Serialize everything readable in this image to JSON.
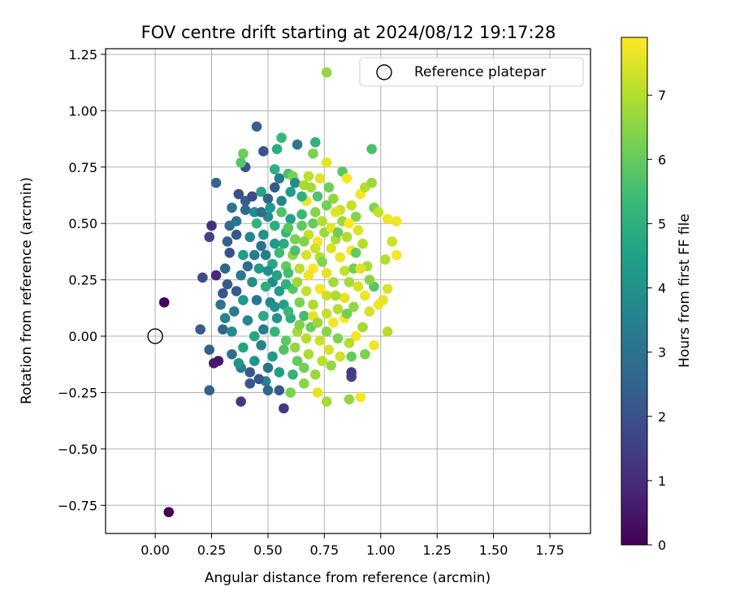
{
  "chart_data": {
    "type": "scatter",
    "title": "FOV centre drift starting at 2024/08/12 19:17:28",
    "xlabel": "Angular distance from reference (arcmin)",
    "ylabel": "Rotation from reference (arcmin)",
    "xlim": [
      -0.22,
      1.93
    ],
    "ylim": [
      -0.875,
      1.275
    ],
    "xticks": [
      0.0,
      0.25,
      0.5,
      0.75,
      1.0,
      1.25,
      1.5,
      1.75
    ],
    "xtick_labels": [
      "0.00",
      "0.25",
      "0.50",
      "0.75",
      "1.00",
      "1.25",
      "1.50",
      "1.75"
    ],
    "yticks": [
      -0.75,
      -0.5,
      -0.25,
      0.0,
      0.25,
      0.5,
      0.75,
      1.0,
      1.25
    ],
    "ytick_labels": [
      "−0.75",
      "−0.50",
      "−0.25",
      "0.00",
      "0.25",
      "0.50",
      "0.75",
      "1.00",
      "1.25"
    ],
    "grid": true,
    "legend": {
      "position": "top-right",
      "entries": [
        {
          "label": "Reference platepar",
          "marker": "open-circle"
        }
      ]
    },
    "reference_point": {
      "x": 0.0,
      "y": 0.0
    },
    "colorbar": {
      "label": "Hours from first FF file",
      "range": [
        0,
        7.9
      ],
      "ticks": [
        0,
        1,
        2,
        3,
        4,
        5,
        6,
        7
      ],
      "colormap": "viridis",
      "colors": [
        "#440154",
        "#482878",
        "#3e4989",
        "#31688e",
        "#26828e",
        "#1f9e89",
        "#35b779",
        "#6ece58",
        "#b5de2b",
        "#fde725"
      ]
    },
    "points": [
      [
        0.04,
        0.15,
        0.1
      ],
      [
        0.06,
        -0.78,
        0.1
      ],
      [
        0.26,
        -0.12,
        0.6
      ],
      [
        0.28,
        -0.11,
        0.5
      ],
      [
        0.27,
        0.27,
        0.9
      ],
      [
        0.25,
        0.49,
        1.1
      ],
      [
        0.24,
        0.44,
        1.6
      ],
      [
        0.21,
        0.26,
        1.8
      ],
      [
        0.2,
        0.03,
        2.3
      ],
      [
        0.24,
        -0.06,
        2.4
      ],
      [
        0.24,
        -0.24,
        2.5
      ],
      [
        0.27,
        0.68,
        2.6
      ],
      [
        0.38,
        -0.29,
        1.3
      ],
      [
        0.45,
        0.93,
        2.4
      ],
      [
        0.4,
        0.75,
        2.0
      ],
      [
        0.48,
        0.82,
        2.1
      ],
      [
        0.57,
        -0.32,
        1.3
      ],
      [
        0.87,
        -0.18,
        1.6
      ],
      [
        0.87,
        -0.16,
        1.5
      ],
      [
        0.37,
        0.63,
        1.9
      ],
      [
        0.34,
        0.57,
        3.0
      ],
      [
        0.38,
        0.77,
        5.8
      ],
      [
        0.39,
        0.81,
        6.1
      ],
      [
        0.54,
        0.83,
        4.9
      ],
      [
        0.56,
        0.88,
        5.3
      ],
      [
        0.63,
        0.85,
        3.2
      ],
      [
        0.7,
        0.81,
        6.3
      ],
      [
        0.71,
        0.86,
        5.1
      ],
      [
        0.76,
        1.17,
        6.6
      ],
      [
        0.96,
        0.83,
        5.6
      ],
      [
        0.76,
        0.77,
        7.6
      ],
      [
        0.83,
        0.73,
        5.8
      ],
      [
        0.85,
        0.7,
        7.9
      ],
      [
        0.91,
        0.63,
        7.8
      ],
      [
        0.93,
        0.66,
        7.0
      ],
      [
        0.96,
        0.68,
        6.7
      ],
      [
        0.97,
        0.57,
        6.4
      ],
      [
        0.99,
        0.55,
        7.2
      ],
      [
        1.03,
        0.52,
        7.7
      ],
      [
        1.07,
        0.51,
        7.7
      ],
      [
        1.05,
        0.42,
        7.3
      ],
      [
        1.07,
        0.36,
        7.8
      ],
      [
        1.02,
        0.34,
        7.0
      ],
      [
        1.03,
        0.21,
        7.5
      ],
      [
        1.01,
        0.16,
        7.6
      ],
      [
        0.99,
        0.14,
        7.7
      ],
      [
        0.97,
        0.22,
        5.8
      ],
      [
        1.03,
        0.02,
        7.0
      ],
      [
        0.97,
        -0.04,
        7.7
      ],
      [
        0.93,
        -0.08,
        6.3
      ],
      [
        0.87,
        -0.09,
        6.0
      ],
      [
        0.86,
        -0.28,
        6.6
      ],
      [
        0.91,
        -0.27,
        7.8
      ],
      [
        0.76,
        -0.29,
        6.8
      ],
      [
        0.72,
        -0.25,
        7.6
      ],
      [
        0.66,
        -0.21,
        6.5
      ],
      [
        0.6,
        -0.25,
        6.3
      ],
      [
        0.55,
        -0.24,
        2.3
      ],
      [
        0.49,
        -0.2,
        3.5
      ],
      [
        0.5,
        -0.24,
        2.6
      ],
      [
        0.46,
        -0.19,
        2.1
      ],
      [
        0.42,
        -0.21,
        2.1
      ],
      [
        0.42,
        -0.16,
        2.2
      ],
      [
        0.38,
        -0.14,
        3.4
      ],
      [
        0.37,
        -0.12,
        4.0
      ],
      [
        0.34,
        -0.08,
        2.9
      ],
      [
        0.3,
        0.03,
        2.6
      ],
      [
        0.31,
        0.08,
        3.5
      ],
      [
        0.35,
        0.11,
        3.2
      ],
      [
        0.29,
        0.14,
        3.0
      ],
      [
        0.3,
        0.19,
        2.1
      ],
      [
        0.32,
        0.23,
        2.3
      ],
      [
        0.31,
        0.3,
        2.6
      ],
      [
        0.33,
        0.37,
        1.9
      ],
      [
        0.32,
        0.42,
        2.4
      ],
      [
        0.33,
        0.49,
        2.7
      ],
      [
        0.36,
        0.45,
        2.2
      ],
      [
        0.36,
        0.51,
        3.1
      ],
      [
        0.4,
        0.56,
        2.7
      ],
      [
        0.4,
        0.6,
        2.4
      ],
      [
        0.43,
        0.62,
        1.8
      ],
      [
        0.44,
        0.55,
        3.9
      ],
      [
        0.47,
        0.64,
        4.6
      ],
      [
        0.5,
        0.61,
        2.5
      ],
      [
        0.53,
        0.66,
        2.3
      ],
      [
        0.55,
        0.7,
        3.3
      ],
      [
        0.53,
        0.74,
        5.0
      ],
      [
        0.59,
        0.72,
        5.6
      ],
      [
        0.61,
        0.71,
        6.3
      ],
      [
        0.62,
        0.68,
        3.8
      ],
      [
        0.66,
        0.67,
        6.9
      ],
      [
        0.67,
        0.6,
        7.7
      ],
      [
        0.68,
        0.71,
        7.1
      ],
      [
        0.73,
        0.7,
        7.5
      ],
      [
        0.77,
        0.66,
        6.1
      ],
      [
        0.79,
        0.61,
        6.6
      ],
      [
        0.82,
        0.56,
        7.3
      ],
      [
        0.87,
        0.58,
        7.2
      ],
      [
        0.89,
        0.53,
        6.4
      ],
      [
        0.9,
        0.47,
        7.5
      ],
      [
        0.92,
        0.41,
        7.0
      ],
      [
        0.94,
        0.31,
        6.9
      ],
      [
        0.95,
        0.25,
        6.5
      ],
      [
        0.93,
        0.18,
        7.7
      ],
      [
        0.95,
        0.11,
        7.4
      ],
      [
        0.92,
        0.04,
        6.8
      ],
      [
        0.89,
        0.0,
        7.8
      ],
      [
        0.86,
        -0.03,
        7.0
      ],
      [
        0.82,
        -0.09,
        7.3
      ],
      [
        0.78,
        -0.13,
        6.6
      ],
      [
        0.74,
        -0.11,
        7.1
      ],
      [
        0.68,
        -0.08,
        6.9
      ],
      [
        0.63,
        -0.11,
        6.0
      ],
      [
        0.57,
        -0.06,
        5.7
      ],
      [
        0.52,
        -0.09,
        4.3
      ],
      [
        0.47,
        -0.04,
        3.5
      ],
      [
        0.44,
        0.0,
        4.7
      ],
      [
        0.41,
        0.07,
        3.7
      ],
      [
        0.39,
        0.16,
        4.2
      ],
      [
        0.38,
        0.27,
        3.2
      ],
      [
        0.39,
        0.36,
        4.4
      ],
      [
        0.42,
        0.44,
        3.6
      ],
      [
        0.45,
        0.5,
        5.1
      ],
      [
        0.48,
        0.45,
        4.0
      ],
      [
        0.5,
        0.53,
        3.8
      ],
      [
        0.53,
        0.49,
        4.9
      ],
      [
        0.56,
        0.55,
        5.7
      ],
      [
        0.58,
        0.46,
        5.2
      ],
      [
        0.6,
        0.52,
        4.6
      ],
      [
        0.62,
        0.43,
        6.3
      ],
      [
        0.65,
        0.49,
        5.9
      ],
      [
        0.68,
        0.45,
        7.2
      ],
      [
        0.7,
        0.5,
        6.0
      ],
      [
        0.72,
        0.42,
        7.8
      ],
      [
        0.75,
        0.46,
        6.7
      ],
      [
        0.78,
        0.39,
        7.5
      ],
      [
        0.8,
        0.43,
        6.9
      ],
      [
        0.82,
        0.35,
        7.7
      ],
      [
        0.84,
        0.29,
        7.2
      ],
      [
        0.86,
        0.24,
        6.8
      ],
      [
        0.84,
        0.17,
        7.6
      ],
      [
        0.81,
        0.12,
        7.0
      ],
      [
        0.79,
        0.06,
        7.8
      ],
      [
        0.76,
        0.02,
        6.5
      ],
      [
        0.73,
        -0.02,
        7.3
      ],
      [
        0.69,
        0.04,
        6.1
      ],
      [
        0.66,
        0.09,
        5.5
      ],
      [
        0.63,
        0.02,
        6.8
      ],
      [
        0.6,
        0.08,
        5.0
      ],
      [
        0.57,
        0.14,
        4.5
      ],
      [
        0.54,
        0.08,
        4.1
      ],
      [
        0.51,
        0.15,
        3.6
      ],
      [
        0.48,
        0.09,
        4.8
      ],
      [
        0.45,
        0.16,
        3.1
      ],
      [
        0.43,
        0.24,
        3.9
      ],
      [
        0.46,
        0.3,
        4.3
      ],
      [
        0.49,
        0.36,
        3.4
      ],
      [
        0.52,
        0.32,
        4.7
      ],
      [
        0.55,
        0.37,
        5.4
      ],
      [
        0.58,
        0.31,
        6.0
      ],
      [
        0.61,
        0.36,
        6.6
      ],
      [
        0.64,
        0.3,
        7.1
      ],
      [
        0.67,
        0.36,
        7.4
      ],
      [
        0.7,
        0.3,
        7.9
      ],
      [
        0.73,
        0.35,
        7.0
      ],
      [
        0.76,
        0.28,
        7.6
      ],
      [
        0.79,
        0.24,
        6.8
      ],
      [
        0.76,
        0.18,
        7.3
      ],
      [
        0.73,
        0.21,
        7.8
      ],
      [
        0.7,
        0.14,
        6.9
      ],
      [
        0.67,
        0.2,
        7.2
      ],
      [
        0.64,
        0.15,
        6.3
      ],
      [
        0.61,
        0.21,
        5.8
      ],
      [
        0.58,
        0.23,
        5.1
      ],
      [
        0.55,
        0.2,
        4.4
      ],
      [
        0.52,
        0.24,
        3.7
      ],
      [
        0.49,
        0.22,
        4.9
      ],
      [
        0.47,
        0.4,
        2.9
      ],
      [
        0.44,
        0.36,
        3.3
      ],
      [
        0.41,
        0.31,
        2.8
      ],
      [
        0.36,
        0.2,
        2.2
      ],
      [
        0.34,
        0.02,
        3.8
      ],
      [
        0.39,
        -0.05,
        4.6
      ],
      [
        0.44,
        -0.11,
        4.1
      ],
      [
        0.5,
        -0.14,
        3.0
      ],
      [
        0.55,
        -0.16,
        4.4
      ],
      [
        0.61,
        -0.17,
        5.2
      ],
      [
        0.66,
        -0.14,
        6.2
      ],
      [
        0.71,
        -0.17,
        6.7
      ],
      [
        0.77,
        -0.06,
        7.4
      ],
      [
        0.81,
        -0.01,
        6.3
      ],
      [
        0.84,
        0.08,
        7.9
      ],
      [
        0.88,
        0.13,
        6.6
      ],
      [
        0.9,
        0.22,
        7.4
      ],
      [
        0.88,
        0.3,
        6.2
      ],
      [
        0.87,
        0.38,
        7.8
      ],
      [
        0.85,
        0.44,
        7.0
      ],
      [
        0.83,
        0.51,
        6.7
      ],
      [
        0.8,
        0.55,
        7.6
      ],
      [
        0.76,
        0.58,
        6.2
      ],
      [
        0.72,
        0.62,
        5.7
      ],
      [
        0.69,
        0.66,
        6.8
      ],
      [
        0.65,
        0.62,
        5.0
      ],
      [
        0.6,
        0.64,
        4.4
      ],
      [
        0.56,
        0.6,
        3.6
      ],
      [
        0.51,
        0.57,
        4.2
      ],
      [
        0.47,
        0.55,
        2.8
      ],
      [
        0.57,
        0.41,
        4.8
      ],
      [
        0.62,
        0.38,
        5.6
      ],
      [
        0.66,
        0.42,
        6.4
      ],
      [
        0.71,
        0.39,
        7.3
      ],
      [
        0.74,
        0.33,
        6.4
      ],
      [
        0.68,
        0.27,
        7.7
      ],
      [
        0.63,
        0.24,
        6.7
      ],
      [
        0.59,
        0.28,
        5.5
      ],
      [
        0.54,
        0.27,
        4.6
      ],
      [
        0.5,
        0.29,
        3.9
      ],
      [
        0.53,
        0.41,
        4.3
      ],
      [
        0.59,
        0.48,
        5.8
      ],
      [
        0.65,
        0.54,
        5.3
      ],
      [
        0.71,
        0.55,
        6.5
      ],
      [
        0.74,
        0.51,
        7.0
      ],
      [
        0.78,
        0.48,
        7.6
      ],
      [
        0.81,
        0.46,
        6.1
      ],
      [
        0.86,
        0.5,
        7.9
      ],
      [
        0.89,
        0.37,
        6.0
      ],
      [
        0.91,
        0.3,
        7.5
      ],
      [
        0.85,
        0.1,
        6.2
      ],
      [
        0.8,
        0.18,
        6.9
      ],
      [
        0.7,
        0.09,
        7.6
      ],
      [
        0.64,
        0.05,
        6.4
      ],
      [
        0.59,
        0.11,
        5.3
      ],
      [
        0.53,
        0.13,
        4.0
      ],
      [
        0.48,
        0.03,
        3.3
      ],
      [
        0.53,
        0.02,
        5.2
      ],
      [
        0.58,
        -0.02,
        5.9
      ],
      [
        0.62,
        -0.05,
        6.6
      ],
      [
        0.67,
        -0.01,
        7.0
      ],
      [
        0.72,
        0.06,
        6.7
      ],
      [
        0.76,
        0.1,
        7.2
      ]
    ]
  }
}
